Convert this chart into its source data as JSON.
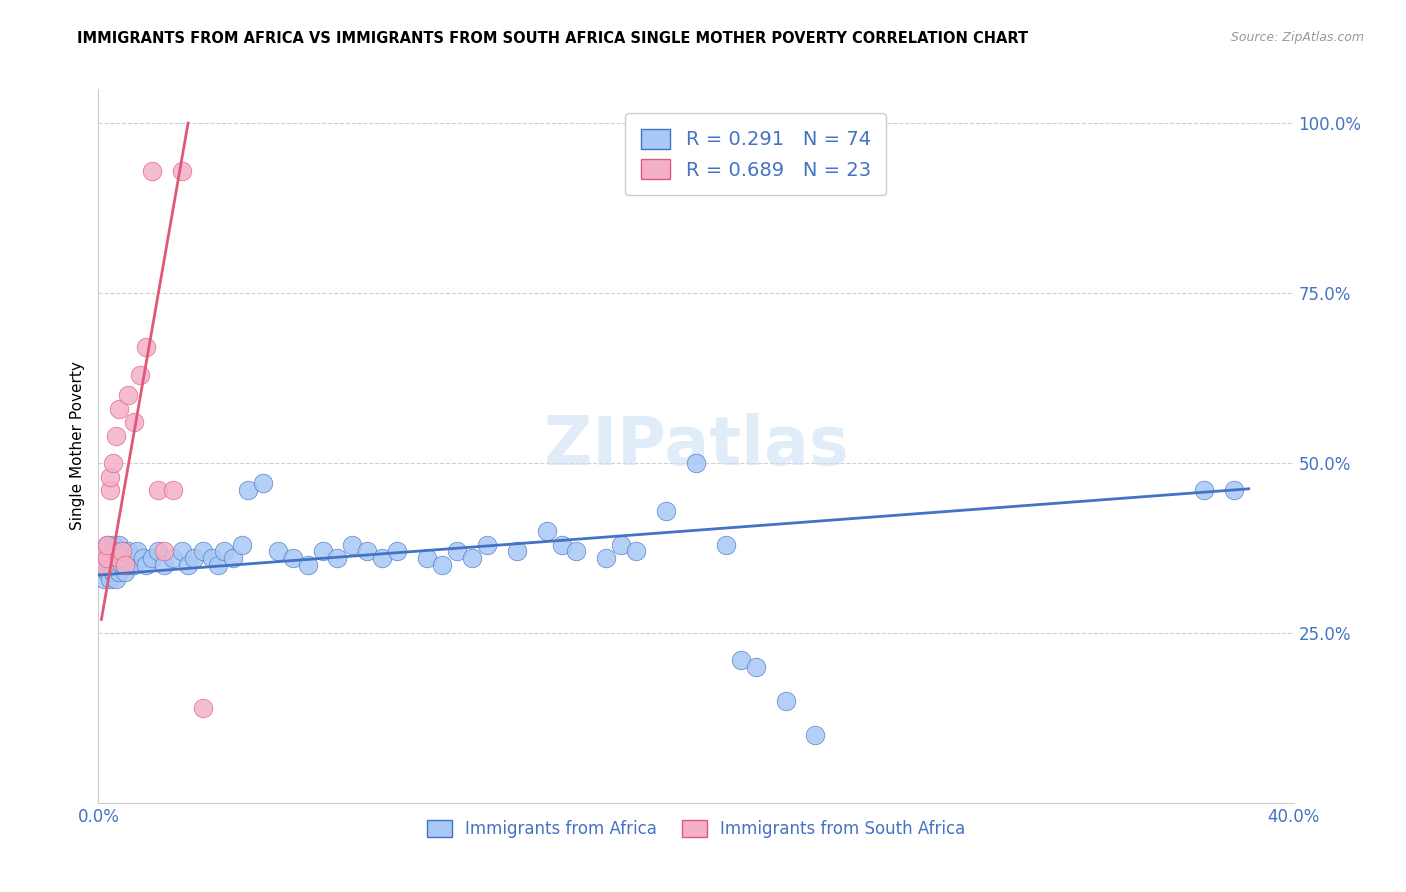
{
  "title": "IMMIGRANTS FROM AFRICA VS IMMIGRANTS FROM SOUTH AFRICA SINGLE MOTHER POVERTY CORRELATION CHART",
  "source": "Source: ZipAtlas.com",
  "ylabel": "Single Mother Poverty",
  "xlim": [
    0.0,
    0.4
  ],
  "ylim": [
    0.0,
    1.05
  ],
  "africa_color": "#a8c8f5",
  "africa_line_color": "#4472c4",
  "south_africa_color": "#f4b0c8",
  "south_africa_line_color": "#e05878",
  "watermark": "ZIPatlas",
  "africa_R": 0.291,
  "africa_N": 74,
  "south_africa_R": 0.689,
  "south_africa_N": 23,
  "africa_x": [
    0.001,
    0.002,
    0.002,
    0.003,
    0.003,
    0.003,
    0.004,
    0.004,
    0.004,
    0.005,
    0.005,
    0.005,
    0.006,
    0.006,
    0.006,
    0.007,
    0.007,
    0.007,
    0.008,
    0.008,
    0.009,
    0.009,
    0.01,
    0.01,
    0.011,
    0.012,
    0.013,
    0.015,
    0.016,
    0.018,
    0.02,
    0.022,
    0.025,
    0.028,
    0.03,
    0.032,
    0.035,
    0.038,
    0.04,
    0.042,
    0.045,
    0.048,
    0.05,
    0.055,
    0.06,
    0.065,
    0.07,
    0.075,
    0.08,
    0.085,
    0.09,
    0.095,
    0.1,
    0.11,
    0.115,
    0.12,
    0.125,
    0.13,
    0.14,
    0.15,
    0.155,
    0.16,
    0.17,
    0.175,
    0.18,
    0.19,
    0.2,
    0.21,
    0.215,
    0.22,
    0.23,
    0.24,
    0.37,
    0.38
  ],
  "africa_y": [
    0.35,
    0.37,
    0.33,
    0.36,
    0.34,
    0.38,
    0.35,
    0.37,
    0.33,
    0.36,
    0.34,
    0.38,
    0.35,
    0.37,
    0.33,
    0.36,
    0.34,
    0.38,
    0.35,
    0.37,
    0.36,
    0.34,
    0.35,
    0.37,
    0.36,
    0.35,
    0.37,
    0.36,
    0.35,
    0.36,
    0.37,
    0.35,
    0.36,
    0.37,
    0.35,
    0.36,
    0.37,
    0.36,
    0.35,
    0.37,
    0.36,
    0.38,
    0.46,
    0.47,
    0.37,
    0.36,
    0.35,
    0.37,
    0.36,
    0.38,
    0.37,
    0.36,
    0.37,
    0.36,
    0.35,
    0.37,
    0.36,
    0.38,
    0.37,
    0.4,
    0.38,
    0.37,
    0.36,
    0.38,
    0.37,
    0.43,
    0.5,
    0.38,
    0.21,
    0.2,
    0.15,
    0.1,
    0.46,
    0.46
  ],
  "south_africa_x": [
    0.001,
    0.002,
    0.002,
    0.003,
    0.003,
    0.004,
    0.004,
    0.005,
    0.006,
    0.007,
    0.007,
    0.008,
    0.009,
    0.01,
    0.012,
    0.014,
    0.016,
    0.018,
    0.02,
    0.022,
    0.025,
    0.028,
    0.035
  ],
  "south_africa_y": [
    0.36,
    0.35,
    0.37,
    0.36,
    0.38,
    0.46,
    0.48,
    0.5,
    0.54,
    0.58,
    0.36,
    0.37,
    0.35,
    0.6,
    0.56,
    0.63,
    0.67,
    0.93,
    0.46,
    0.37,
    0.46,
    0.93,
    0.14
  ]
}
